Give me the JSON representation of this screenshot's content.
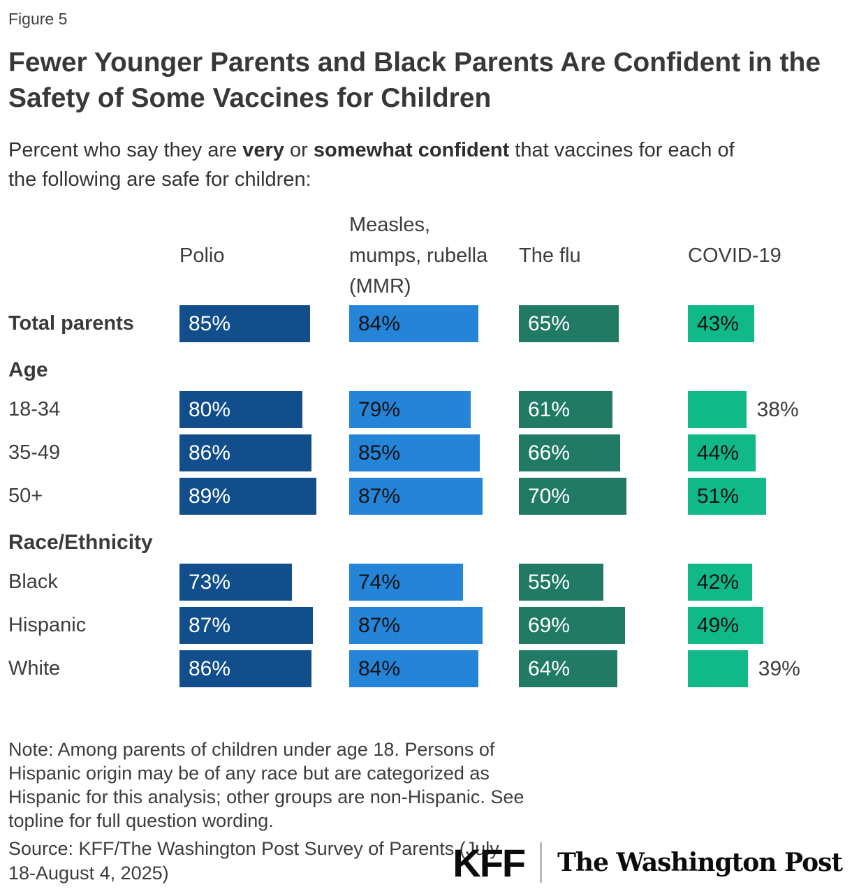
{
  "figure_label": "Figure 5",
  "title": "Fewer Younger Parents and Black Parents Are Confident in the Safety of Some Vaccines for Children",
  "subtitle": {
    "line1_prefix": "Percent who say they are ",
    "line1_bold1": "very",
    "line1_mid": " or ",
    "line1_bold2": "somewhat confident",
    "line1_suffix": " that vaccines for each of",
    "line2": "the following are safe for children:"
  },
  "chart_data": {
    "type": "bar",
    "orientation": "horizontal",
    "unit": "%",
    "xlim": [
      0,
      100
    ],
    "value_labels_shown": true,
    "columns": [
      {
        "label": "Polio",
        "color": "#114e8b",
        "value_text_color": "#ffffff"
      },
      {
        "label": "Measles, mumps, rubella (MMR)",
        "color": "#2484d8",
        "value_text_color": "#111111"
      },
      {
        "label": "The flu",
        "color": "#217a64",
        "value_text_color": "#ffffff"
      },
      {
        "label": "COVID-19",
        "color": "#11b988",
        "value_text_color": "#111111"
      }
    ],
    "rows": [
      {
        "type": "bars",
        "label": "Total parents",
        "bold": true,
        "values": [
          85,
          84,
          65,
          43
        ]
      },
      {
        "type": "section",
        "label": "Age"
      },
      {
        "type": "bars",
        "label": "18-34",
        "bold": false,
        "values": [
          80,
          79,
          61,
          38
        ]
      },
      {
        "type": "bars",
        "label": "35-49",
        "bold": false,
        "values": [
          86,
          85,
          66,
          44
        ]
      },
      {
        "type": "bars",
        "label": "50+",
        "bold": false,
        "values": [
          89,
          87,
          70,
          51
        ]
      },
      {
        "type": "section",
        "label": "Race/Ethnicity"
      },
      {
        "type": "bars",
        "label": "Black",
        "bold": false,
        "values": [
          73,
          74,
          55,
          42
        ]
      },
      {
        "type": "bars",
        "label": "Hispanic",
        "bold": false,
        "values": [
          87,
          87,
          69,
          49
        ]
      },
      {
        "type": "bars",
        "label": "White",
        "bold": false,
        "values": [
          86,
          84,
          64,
          39
        ]
      }
    ],
    "outside_label_color": "#3d3d3d"
  },
  "note": "Note: Among parents of children under age 18. Persons of Hispanic origin may be of any race but are categorized as Hispanic for this analysis; other groups are non-Hispanic. See topline for full question wording.",
  "source": "Source: KFF/The Washington Post Survey of Parents (July 18-August 4, 2025)",
  "logos": {
    "kff": "KFF",
    "washington_post": "The Washington Post"
  }
}
